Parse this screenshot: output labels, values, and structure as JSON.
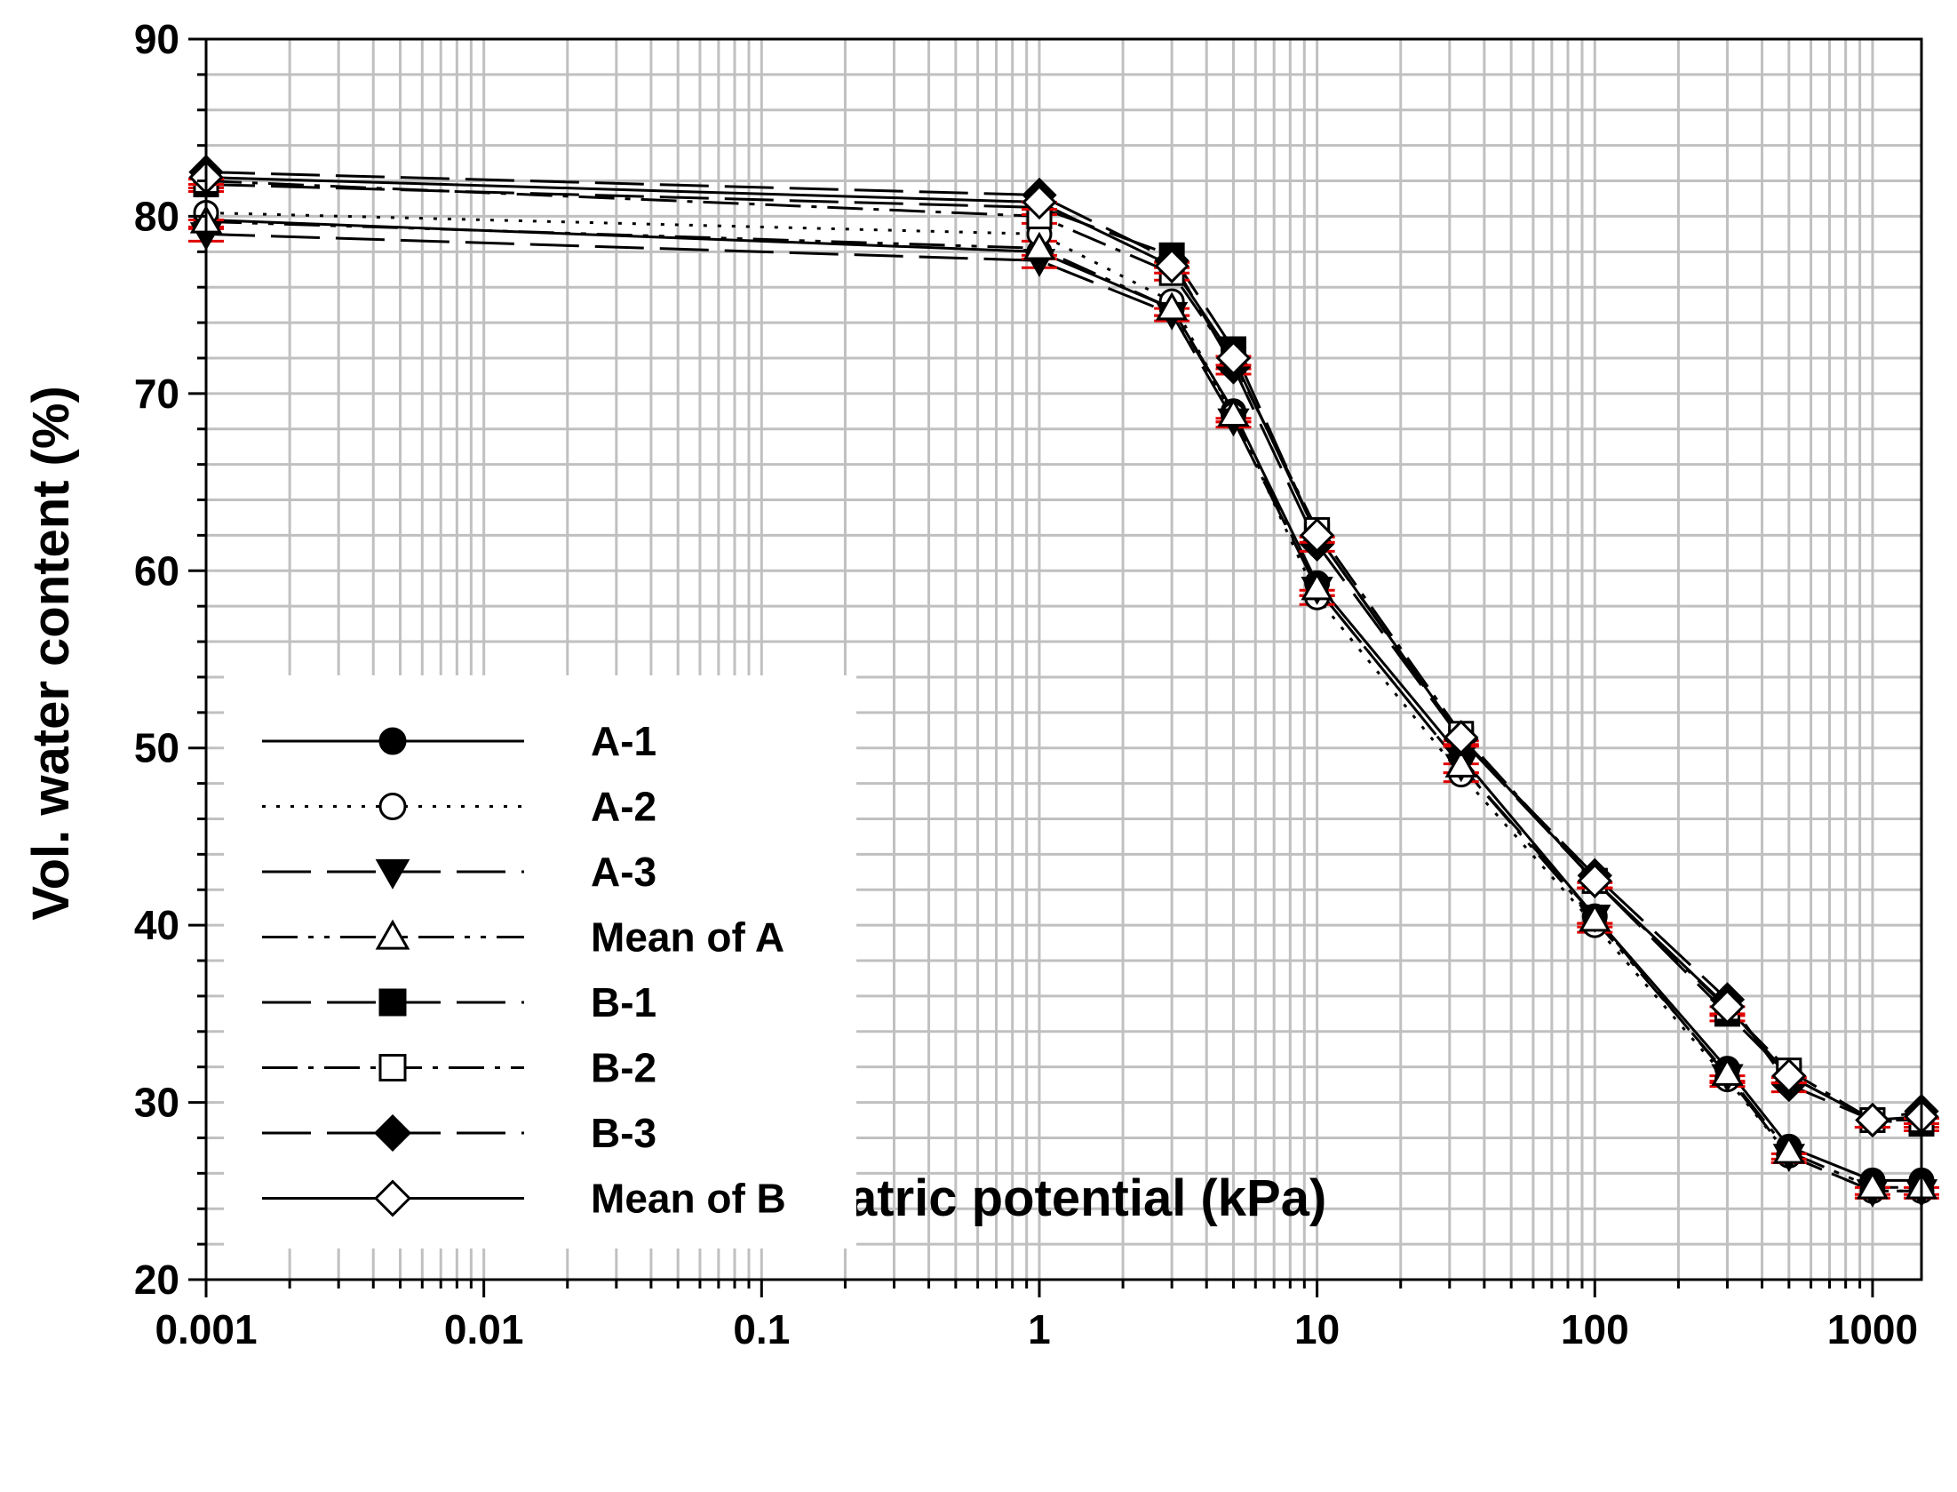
{
  "chart_data": {
    "type": "line",
    "title": "",
    "xlabel": "Matric potential (kPa)",
    "ylabel": "Vol. water content (%)",
    "xscale": "log",
    "xlim": [
      0.001,
      1500
    ],
    "ylim": [
      20,
      90
    ],
    "grid": true,
    "legend_position": "lower-left",
    "x_ticks": [
      0.001,
      0.01,
      0.1,
      1,
      10,
      100,
      1000
    ],
    "x_tick_labels": [
      "0.001",
      "0.01",
      "0.1",
      "1",
      "10",
      "100",
      "1000"
    ],
    "y_ticks": [
      20,
      30,
      40,
      50,
      60,
      70,
      80,
      90
    ],
    "y_tick_labels": [
      "20",
      "30",
      "40",
      "50",
      "60",
      "70",
      "80",
      "90"
    ],
    "x": [
      0.001,
      1,
      3,
      5,
      10,
      33,
      100,
      300,
      500,
      1000,
      1500
    ],
    "series": [
      {
        "name": "A-1",
        "marker": "circle-filled",
        "dash": "solid",
        "values": [
          79.8,
          78.0,
          74.8,
          69.0,
          59.3,
          49.5,
          40.5,
          31.9,
          27.5,
          25.6,
          25.6
        ]
      },
      {
        "name": "A-2",
        "marker": "circle-open",
        "dash": "dot",
        "values": [
          80.2,
          79.0,
          75.2,
          68.8,
          58.5,
          48.5,
          40.0,
          31.3,
          27.0,
          25.0,
          25.0
        ]
      },
      {
        "name": "A-3",
        "marker": "triangle-down-filled",
        "dash": "longdash",
        "values": [
          79.0,
          77.5,
          74.5,
          68.5,
          59.0,
          49.0,
          40.5,
          31.5,
          27.0,
          25.0,
          25.0
        ]
      },
      {
        "name": "Mean of A",
        "marker": "triangle-open",
        "dash": "dashdotdot",
        "values": [
          79.7,
          78.2,
          74.8,
          68.8,
          59.0,
          49.0,
          40.3,
          31.6,
          27.2,
          25.2,
          25.2
        ]
      },
      {
        "name": "B-1",
        "marker": "square-filled",
        "dash": "longdash",
        "values": [
          81.8,
          80.5,
          77.8,
          72.5,
          62.0,
          50.5,
          42.5,
          35.0,
          31.5,
          29.0,
          28.8
        ]
      },
      {
        "name": "B-2",
        "marker": "square-open",
        "dash": "dashdot",
        "values": [
          82.0,
          80.0,
          76.8,
          71.8,
          62.3,
          50.8,
          42.5,
          35.3,
          31.8,
          29.0,
          29.0
        ]
      },
      {
        "name": "B-3",
        "marker": "diamond-filled",
        "dash": "longdash",
        "values": [
          82.5,
          81.2,
          77.5,
          71.5,
          61.5,
          50.5,
          42.8,
          35.8,
          31.0,
          29.0,
          29.5
        ]
      },
      {
        "name": "Mean of B",
        "marker": "diamond-open",
        "dash": "solid",
        "values": [
          82.2,
          80.8,
          77.2,
          72.0,
          62.0,
          50.6,
          42.5,
          35.4,
          31.5,
          29.0,
          29.2
        ]
      }
    ],
    "legend_labels": [
      "A-1",
      "A-2",
      "A-3",
      "Mean of A",
      "B-1",
      "B-2",
      "B-3",
      "Mean of B"
    ]
  }
}
